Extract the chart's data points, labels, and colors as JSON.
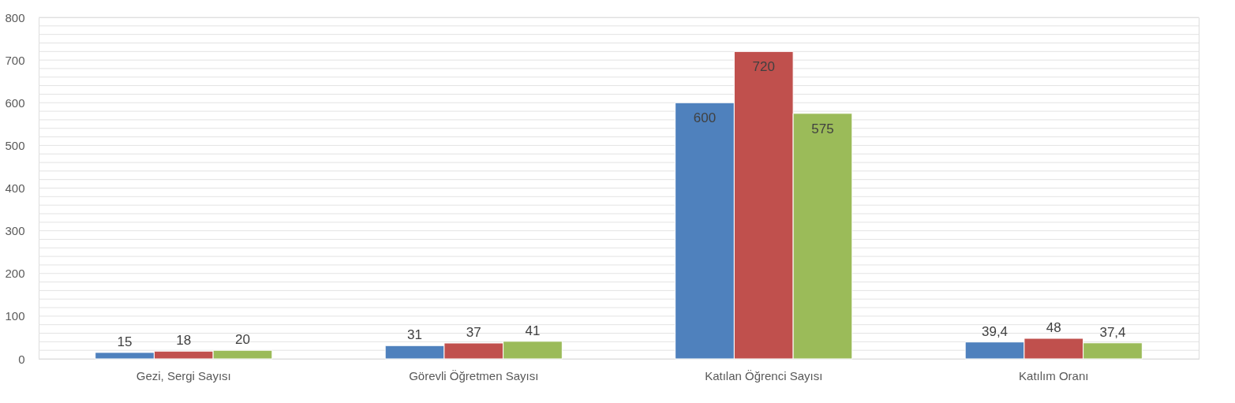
{
  "chart_data": {
    "type": "bar",
    "categories": [
      "Gezi, Sergi Sayısı",
      "Görevli Öğretmen Sayısı",
      "Katılan Öğrenci Sayısı",
      "Katılım Oranı"
    ],
    "series": [
      {
        "color": "#4f81bd",
        "values": [
          15,
          31,
          600,
          39.4
        ],
        "value_labels": [
          "15",
          "31",
          "600",
          "39,4"
        ]
      },
      {
        "color": "#c0504d",
        "values": [
          18,
          37,
          720,
          48
        ],
        "value_labels": [
          "18",
          "37",
          "720",
          "48"
        ]
      },
      {
        "color": "#9bbb59",
        "values": [
          20,
          41,
          575,
          37.4
        ],
        "value_labels": [
          "20",
          "41",
          "575",
          "37,4"
        ]
      }
    ],
    "ylim": [
      0,
      800
    ],
    "yticks": [
      0,
      {
        "value": 20,
        "label": null
      },
      {
        "value": 40,
        "label": null
      },
      {
        "value": 60,
        "label": null
      },
      {
        "value": 80,
        "label": null
      },
      100,
      {
        "value": 120,
        "label": null
      },
      {
        "value": 140,
        "label": null
      },
      {
        "value": 160,
        "label": null
      },
      {
        "value": 180,
        "label": null
      },
      200,
      {
        "value": 220,
        "label": null
      },
      {
        "value": 240,
        "label": null
      },
      {
        "value": 260,
        "label": null
      },
      {
        "value": 280,
        "label": null
      },
      300,
      {
        "value": 320,
        "label": null
      },
      {
        "value": 340,
        "label": null
      },
      {
        "value": 360,
        "label": null
      },
      {
        "value": 380,
        "label": null
      },
      400,
      {
        "value": 420,
        "label": null
      },
      {
        "value": 440,
        "label": null
      },
      {
        "value": 460,
        "label": null
      },
      {
        "value": 480,
        "label": null
      },
      500,
      {
        "value": 520,
        "label": null
      },
      {
        "value": 540,
        "label": null
      },
      {
        "value": 560,
        "label": null
      },
      {
        "value": 580,
        "label": null
      },
      600,
      {
        "value": 620,
        "label": null
      },
      {
        "value": 640,
        "label": null
      },
      {
        "value": 660,
        "label": null
      },
      {
        "value": 680,
        "label": null
      },
      700,
      {
        "value": 720,
        "label": null
      },
      {
        "value": 740,
        "label": null
      },
      {
        "value": 760,
        "label": null
      },
      {
        "value": 780,
        "label": null
      },
      800
    ],
    "grid": "y",
    "legend": false
  }
}
